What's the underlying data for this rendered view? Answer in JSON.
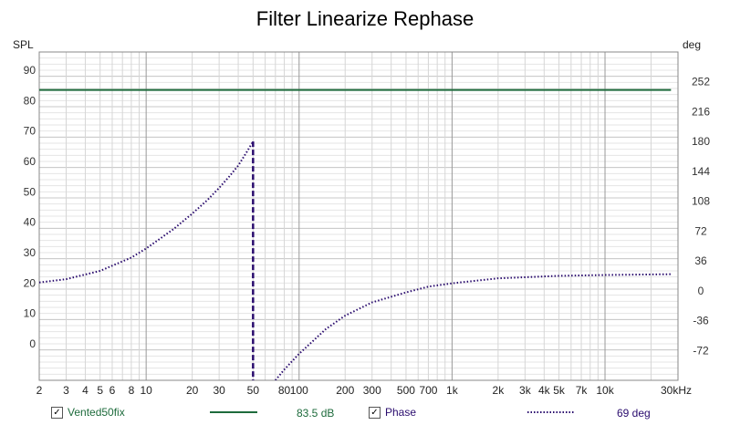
{
  "chart_data": {
    "type": "line",
    "title": "Filter Linearize Rephase",
    "y_left_label": "SPL",
    "y_right_label": "deg",
    "x_scale": "log",
    "xlim": [
      2,
      30000
    ],
    "ylim_left": [
      -12,
      96
    ],
    "ylim_right": [
      -108,
      288
    ],
    "grid": true,
    "x_tick_labels": [
      {
        "v": 2,
        "t": "2"
      },
      {
        "v": 3,
        "t": "3"
      },
      {
        "v": 4,
        "t": "4"
      },
      {
        "v": 5,
        "t": "5"
      },
      {
        "v": 6,
        "t": "6"
      },
      {
        "v": 8,
        "t": "8"
      },
      {
        "v": 10,
        "t": "10"
      },
      {
        "v": 20,
        "t": "20"
      },
      {
        "v": 30,
        "t": "30"
      },
      {
        "v": 50,
        "t": "50"
      },
      {
        "v": 80,
        "t": "80"
      },
      {
        "v": 100,
        "t": "100"
      },
      {
        "v": 200,
        "t": "200"
      },
      {
        "v": 300,
        "t": "300"
      },
      {
        "v": 500,
        "t": "500"
      },
      {
        "v": 700,
        "t": "700"
      },
      {
        "v": 1000,
        "t": "1k"
      },
      {
        "v": 2000,
        "t": "2k"
      },
      {
        "v": 3000,
        "t": "3k"
      },
      {
        "v": 4000,
        "t": "4k"
      },
      {
        "v": 5000,
        "t": "5k"
      },
      {
        "v": 7000,
        "t": "7k"
      },
      {
        "v": 10000,
        "t": "10k"
      },
      {
        "v": 30000,
        "t": "30kHz"
      }
    ],
    "y_left_ticks": [
      0,
      10,
      20,
      30,
      40,
      50,
      60,
      70,
      80,
      90
    ],
    "y_right_ticks": [
      -72,
      -36,
      0,
      36,
      72,
      108,
      144,
      180,
      216,
      252
    ],
    "series": [
      {
        "name": "Vented50fix",
        "axis": "left",
        "color": "#1e6b3c",
        "style": "solid",
        "x": [
          2,
          27000
        ],
        "y": [
          83.5,
          83.5
        ]
      },
      {
        "name": "Phase",
        "axis": "right",
        "color": "#2a0c6e",
        "style": "dotted",
        "x": [
          2,
          3,
          5,
          8,
          10,
          15,
          20,
          25,
          30,
          35,
          40,
          45,
          50
        ],
        "y": [
          10,
          14,
          24,
          40,
          51,
          74,
          93,
          109,
          124,
          138,
          151,
          166,
          180
        ],
        "x2": [
          70,
          80,
          100,
          150,
          200,
          300,
          500,
          700,
          1000,
          2000,
          5000,
          10000,
          27000
        ],
        "y2": [
          -108,
          -95,
          -76,
          -46,
          -30,
          -14,
          -2,
          5,
          9,
          15,
          18,
          19,
          20
        ]
      }
    ],
    "vertical_markers": [
      {
        "x": 50,
        "axis": "right",
        "from": -108,
        "to": 180,
        "color": "#2a0c6e",
        "style": "dashed"
      }
    ],
    "legend": [
      {
        "checked": true,
        "name": "Vented50fix",
        "value": "83.5 dB",
        "color": "#1e6b3c",
        "style": "solid"
      },
      {
        "checked": true,
        "name": "Phase",
        "value": "69 deg",
        "color": "#2a0c6e",
        "style": "dotted"
      }
    ]
  }
}
